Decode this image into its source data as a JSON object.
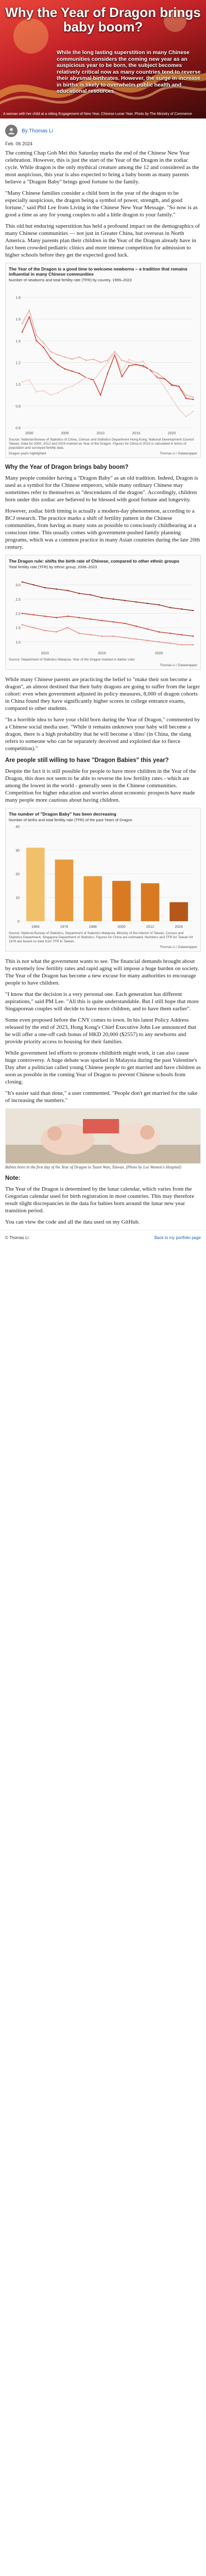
{
  "hero": {
    "title": "Why the Year of Dragon brings baby boom?",
    "summary": "While the long lasting superstition in many Chinese communities considers the coming new year as an auspicious year to be born, the subject becomes relatively critical now as many countries tend to reverse their abysmal birthrates. However, the surge in increase in births is likely to overwhelm public health and educational resources.",
    "caption": "A woman with her child at a sitting Engagement of New Year, Chinese Lunar Year. Photo by The Ministry of Commerce"
  },
  "byline": {
    "author": "By Thomas Li",
    "date": "Feb. 06 2024"
  },
  "intro": [
    "The coming Chap Goh Mei this Saturday marks the end of the Chinese New Year celebration. However, this is just the start of the Year of the Dragon in the zodiac cycle. While dragon is the only mythical creature among the 12 and considered as the most auspicious, this year is also expected to bring a baby boom as many parents believe a \"Dragon Baby\" brings good fortune to the family.",
    "\"Many Chinese families consider a child born in the year of the dragon to be especially auspicious, the dragon being a symbol of power, strength, and good fortune,\" said Phil Lee from Living in the Chinese New Year Message. \"So now is as good a time as any for young couples to add a little dragon to your family.\"",
    "This old but enduring superstition has held a profound impact on the demographics of many Chinese communities — not just in Greater China, but overseas in North America. Many parents plan their children in the Year of the Dragon already have in fact been crowded pediatric clinics and more intense competition for admission to higher schools before they get the expected good luck."
  ],
  "chart1": {
    "title": "The Year of the Dragon is a good time to welcome newborns – a tradition that remains influential in many Chinese communities",
    "subtitle": "Number of newborns and total fertility rate (TFR) by country, 1999–2023",
    "note": "Source: National Bureau of Statistics of China, Census and Statistics Department Hong Kong, National Development Council Taiwan. Data for 2000, 2012 and 2024 marked as Year of the Dragon. Figures for China in 2023 is calculated in terms of population and surveyed fertility data.",
    "source": "Dragon years highlighted",
    "credit": "Thomas Li / Datawrapper"
  },
  "section1": {
    "heading": "Why the Year of Dragon brings baby boom?",
    "paragraphs": [
      "Many people consider having a \"Dragon Baby\" as an old tradition. Indeed, Dragon is used as a symbol for the Chinese emperors, while many ordinary Chinese may sometimes refer to themselves as \"descendants of the dragon\". Accordingly, children born under this zodiac are believed to be blessed with good fortune and longevity.",
      "However, zodiac birth timing is actually a modern-day phenomenon, according to a BCJ research. The practice marks a shift of fertility pattern in the Chinese communities, from having as many sons as possible to consciously childbearing at a conscious time. This usually comes with government-pushed family planning programs, which was a common practice in many Asian countries during the late 20th century."
    ]
  },
  "chart2": {
    "title": "The Dragon rule: shifts the birth rate of Chinese, compared to other ethnic groups",
    "subtitle": "Total fertility rate (TFR) by ethnic group, 2008–2023",
    "note": "Source: Department of Statistics Malaysia. Year of the Dragon marked in darker color",
    "credit": "Thomas Li / Datawrapper"
  },
  "section2": {
    "paragraphs": [
      "While many Chinese parents are practicing the belief to \"make their son become a dragon\", an almost destined that their baby dragons are going to suffer from the larger cohort: even when government adjusted its policy measures, 8,000 of dragon cohorts in China found they have significantly higher scores in college entrance exams, compared to other students.",
      "\"In a horrible idea to have your child born during the Year of Dragon,\" commented by a Chinese social media user. \"While it remains unknown your baby will become a dragon, there is a high probability that he will become a 'dino' (in China, the slang refers to someone who can be separately deceived and exploited due to fierce competition).\""
    ],
    "heading": "Are people still willing to have \"Dragon Babies\" this year?",
    "paragraphs2": [
      "Despite the fact it is still possible for people to have more children in the Year of the Dragon, this does not seem to be able to reverse the low fertility rates - which are among the lowest in the world - generally seen in the Chinese communities. Competition for higher education and worries about economic prospects have made many people more cautious about having children."
    ]
  },
  "chart3": {
    "title": "The number of \"Dragon Baby\" has been decreasing",
    "subtitle": "Number of births and total fertility rate (TFR) of the past Years of Dragon",
    "note": "Source: National Bureau of Statistics, Department of Statistics Malaysia, Ministry of the Interior of Taiwan, Census and Statistics Department, Singapore Department of Statistics. Figures for China are estimated. Numbers and TFR for Taiwan for 1976 are based on data from TFR in Taiwan.",
    "credit": "Thomas Li / Datawrapper"
  },
  "section3": {
    "paragraphs": [
      "This is not what the government wants to see. The financial demands brought about by extremely low fertility rates and rapid aging will impose a huge burden on society. The Year of the Dragon has become a new excuse for many authorities to encourage people to have children.",
      "\"I know that the decision is a very personal one. Each generation has different aspirations,\" said PM Lee. \"All this is quite understandable. But I still hope that more Singaporean couples will decide to have more children, and to have them earlier\".",
      "Some even proposed before the CNY comes to town. In his latest Policy Address released by the end of 2023, Hong Kong's Chief Executive John Lee announced that he will offer a one-off cash bonus of HKD 20,000 ($2557) to any newborns and provide priority access to housing for their families.",
      "While government led efforts to promote childbirth might work, it can also cause huge controversy. A huge debate was sparked in Malaysia during the past Valentine's Day after a politician called young Chinese people to get married and have children as soon as possible in the coming Year of Dragon to prevent Chinese schools from closing.",
      "\"It's easier said than done,\" a user commented. \"People don't get married for the sake of increasing the numbers.\""
    ]
  },
  "photo": {
    "caption": "Babies born in the first day of the Year of Dragon in Tsuen Wan, Taiwan. (Photo by Lee Women's Hospital)"
  },
  "note_section": {
    "label": "Note:",
    "paragraphs": [
      "The Year of the Dragon is determined by the lunar calendar, which varies from the Gregorian calendar used for birth registration in most countries. This may therefore result slight discrepancies in the data for babies born around the lunar new year transition period.",
      "You can view the code and all the data used on my GitHub."
    ]
  },
  "footer": {
    "copyright": "© Thomas Li",
    "back_link": "Back to my portfolio page"
  },
  "chart_data": [
    {
      "type": "line",
      "title": "The Year of the Dragon is a good time to welcome newborns – a tradition that remains influential in many Chinese communities",
      "ylim": [
        0.6,
        1.9
      ],
      "yticks": [
        0.6,
        0.8,
        1.0,
        1.2,
        1.4,
        1.6,
        1.8
      ],
      "x": [
        1999,
        2000,
        2001,
        2002,
        2003,
        2004,
        2005,
        2006,
        2007,
        2008,
        2009,
        2010,
        2011,
        2012,
        2013,
        2014,
        2015,
        2016,
        2017,
        2018,
        2019,
        2020,
        2021,
        2022,
        2023
      ],
      "xticks": [
        "2000",
        "2005",
        "2010",
        "2015",
        "2020"
      ],
      "series": [
        {
          "name": "",
          "color": "#e8a79b",
          "values": [
            1.56,
            1.68,
            1.45,
            1.38,
            1.3,
            1.27,
            1.25,
            1.23,
            1.25,
            1.22,
            1.23,
            1.2,
            1.22,
            1.3,
            1.22,
            1.2,
            1.18,
            1.16,
            1.13,
            1.1,
            1.05,
            1.0,
            0.98,
            0.9,
            0.88
          ]
        },
        {
          "name": "",
          "color": "#c9392b",
          "values": [
            1.48,
            1.62,
            1.4,
            1.34,
            1.24,
            1.18,
            1.14,
            1.12,
            1.1,
            1.06,
            1.04,
            0.9,
            1.1,
            1.27,
            1.07,
            1.17,
            1.18,
            1.17,
            1.13,
            1.06,
            1.05,
            0.99,
            0.98,
            0.87,
            0.86
          ]
        },
        {
          "name": "",
          "color": "#f2c9c1",
          "values": [
            1.02,
            1.04,
            0.93,
            0.94,
            0.9,
            0.92,
            0.96,
            0.98,
            1.02,
            1.06,
            1.03,
            1.12,
            1.2,
            1.28,
            1.12,
            1.23,
            1.2,
            1.21,
            1.12,
            1.07,
            0.97,
            0.87,
            0.77,
            0.7,
            0.75
          ]
        }
      ]
    },
    {
      "type": "line",
      "title": "The Dragon rule: shifts the birth rate of Chinese, compared to other ethnic groups",
      "ylim": [
        0.8,
        3.4
      ],
      "yticks": [
        1.0,
        1.5,
        2.0,
        2.5,
        3.0
      ],
      "x": [
        2008,
        2009,
        2010,
        2011,
        2012,
        2013,
        2014,
        2015,
        2016,
        2017,
        2018,
        2019,
        2020,
        2021,
        2022,
        2023
      ],
      "xticks": [
        "2010",
        "2015",
        "2020"
      ],
      "series": [
        {
          "name": "",
          "color": "#8e2418",
          "values": [
            3.1,
            3.0,
            2.9,
            2.85,
            2.8,
            2.7,
            2.65,
            2.55,
            2.5,
            2.45,
            2.4,
            2.35,
            2.3,
            2.2,
            2.15,
            2.1
          ]
        },
        {
          "name": "",
          "color": "#c9392b",
          "values": [
            2.0,
            1.95,
            1.9,
            1.85,
            1.9,
            1.85,
            1.8,
            1.75,
            1.7,
            1.65,
            1.55,
            1.45,
            1.35,
            1.3,
            1.25,
            1.2
          ]
        },
        {
          "name": "",
          "color": "#e8877a",
          "values": [
            1.6,
            1.5,
            1.4,
            1.35,
            1.5,
            1.3,
            1.25,
            1.2,
            1.2,
            1.15,
            1.1,
            1.05,
            1.0,
            0.95,
            0.9,
            0.9
          ]
        }
      ]
    },
    {
      "type": "bar",
      "title": "The number of \"Dragon Baby\" has been decreasing",
      "categories": [
        "1964",
        "1976",
        "1988",
        "2000",
        "2012",
        "2024"
      ],
      "ylim": [
        0,
        40
      ],
      "yticks": [
        0,
        10,
        20,
        30,
        40
      ],
      "values": [
        31,
        26,
        19,
        17,
        16,
        8
      ],
      "colors": [
        "#f1c06b",
        "#e89a3c",
        "#e89a3c",
        "#d97a22",
        "#d97a22",
        "#b5561a"
      ]
    }
  ]
}
